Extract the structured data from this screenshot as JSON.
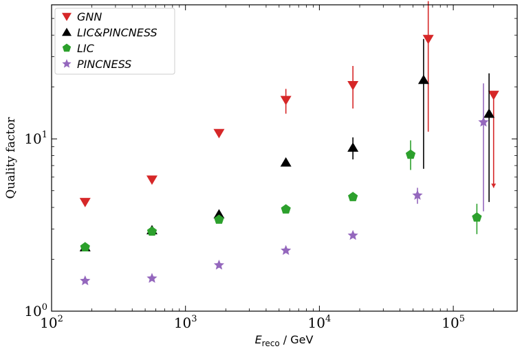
{
  "chart_data": {
    "type": "scatter",
    "xscale": "log",
    "yscale": "log",
    "xlim": [
      100,
      300000
    ],
    "ylim": [
      1,
      60
    ],
    "xlabel": {
      "main": "E",
      "sub": "reco",
      "unit": " / GeV"
    },
    "ylabel": "Quality factor",
    "x_ticks": [
      {
        "base": "10",
        "exp": "2",
        "value": 100
      },
      {
        "base": "10",
        "exp": "3",
        "value": 1000
      },
      {
        "base": "10",
        "exp": "4",
        "value": 10000
      },
      {
        "base": "10",
        "exp": "5",
        "value": 100000
      }
    ],
    "y_ticks": [
      {
        "base": "10",
        "exp": "0",
        "value": 1
      },
      {
        "base": "10",
        "exp": "1",
        "value": 10
      }
    ],
    "legend_position": "top-left",
    "series": [
      {
        "name": "GNN",
        "marker": "triangle-down",
        "color": "#d62728",
        "points": [
          {
            "x": 178,
            "y": 4.3
          },
          {
            "x": 562,
            "y": 5.8
          },
          {
            "x": 1780,
            "y": 10.8
          },
          {
            "x": 5620,
            "y": 16.8,
            "err_lo": 14.0,
            "err_hi": 19.5
          },
          {
            "x": 17800,
            "y": 20.5,
            "err_lo": 15.0,
            "err_hi": 26.5
          },
          {
            "x": 65000,
            "y": 38.0,
            "err_lo": 11.0,
            "err_hi": 63.0
          },
          {
            "x": 200000,
            "y": 18.0,
            "err_lo": 5.2,
            "err_hi": 18.0,
            "lower_limit_arrow": true
          }
        ]
      },
      {
        "name": "LIC&PINCNESS",
        "marker": "triangle-up",
        "color": "#000000",
        "points": [
          {
            "x": 178,
            "y": 2.35
          },
          {
            "x": 562,
            "y": 2.95
          },
          {
            "x": 1780,
            "y": 3.65
          },
          {
            "x": 5620,
            "y": 7.3
          },
          {
            "x": 17800,
            "y": 8.9,
            "err_lo": 7.6,
            "err_hi": 10.2
          },
          {
            "x": 60000,
            "y": 22.0,
            "err_lo": 6.7,
            "err_hi": 38.0
          },
          {
            "x": 185000,
            "y": 14.0,
            "err_lo": 4.3,
            "err_hi": 24.0
          }
        ]
      },
      {
        "name": "LIC",
        "marker": "pentagon",
        "color": "#2ca02c",
        "points": [
          {
            "x": 178,
            "y": 2.35
          },
          {
            "x": 562,
            "y": 2.9
          },
          {
            "x": 1780,
            "y": 3.4
          },
          {
            "x": 5620,
            "y": 3.9
          },
          {
            "x": 17800,
            "y": 4.6
          },
          {
            "x": 48000,
            "y": 8.1,
            "err_lo": 6.6,
            "err_hi": 9.8
          },
          {
            "x": 150000,
            "y": 3.5,
            "err_lo": 2.8,
            "err_hi": 4.2
          }
        ]
      },
      {
        "name": "PINCNESS",
        "marker": "star",
        "color": "#9467bd",
        "points": [
          {
            "x": 178,
            "y": 1.5
          },
          {
            "x": 562,
            "y": 1.55
          },
          {
            "x": 1780,
            "y": 1.85
          },
          {
            "x": 5620,
            "y": 2.25
          },
          {
            "x": 17800,
            "y": 2.75
          },
          {
            "x": 54000,
            "y": 4.7,
            "err_lo": 4.2,
            "err_hi": 5.2
          },
          {
            "x": 168000,
            "y": 12.5,
            "err_lo": 3.8,
            "err_hi": 21.0
          }
        ]
      }
    ]
  }
}
